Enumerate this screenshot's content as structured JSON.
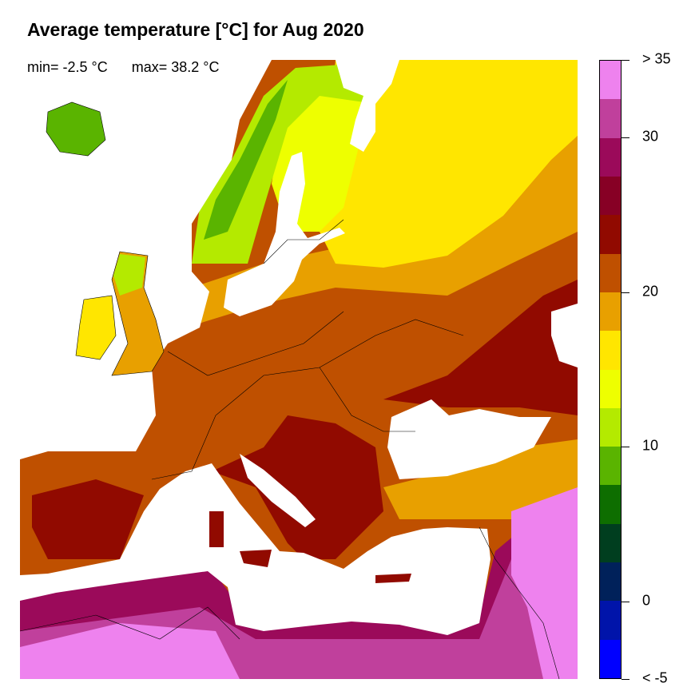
{
  "title": "Average temperature [°C] for Aug 2020",
  "stats": {
    "min": "min= -2.5 °C",
    "max": "max= 38.2 °C"
  },
  "legend": {
    "colors": [
      "#EE82EE",
      "#C0409C",
      "#9B0A5A",
      "#870025",
      "#910A00",
      "#BF5000",
      "#E8A000",
      "#FFE600",
      "#EEFF00",
      "#B4EA00",
      "#5AB400",
      "#0E6E00",
      "#003E1F",
      "#00215A",
      "#0014AA",
      "#0000FF"
    ],
    "labels": [
      {
        "text": "> 35",
        "value": 35
      },
      {
        "text": "30",
        "value": 30
      },
      {
        "text": "20",
        "value": 20
      },
      {
        "text": "10",
        "value": 10
      },
      {
        "text": "0",
        "value": 0
      },
      {
        "text": "< -5",
        "value": -5
      }
    ]
  },
  "map": {
    "sea_color": "#FFFFFF",
    "border_color": "#000000"
  }
}
